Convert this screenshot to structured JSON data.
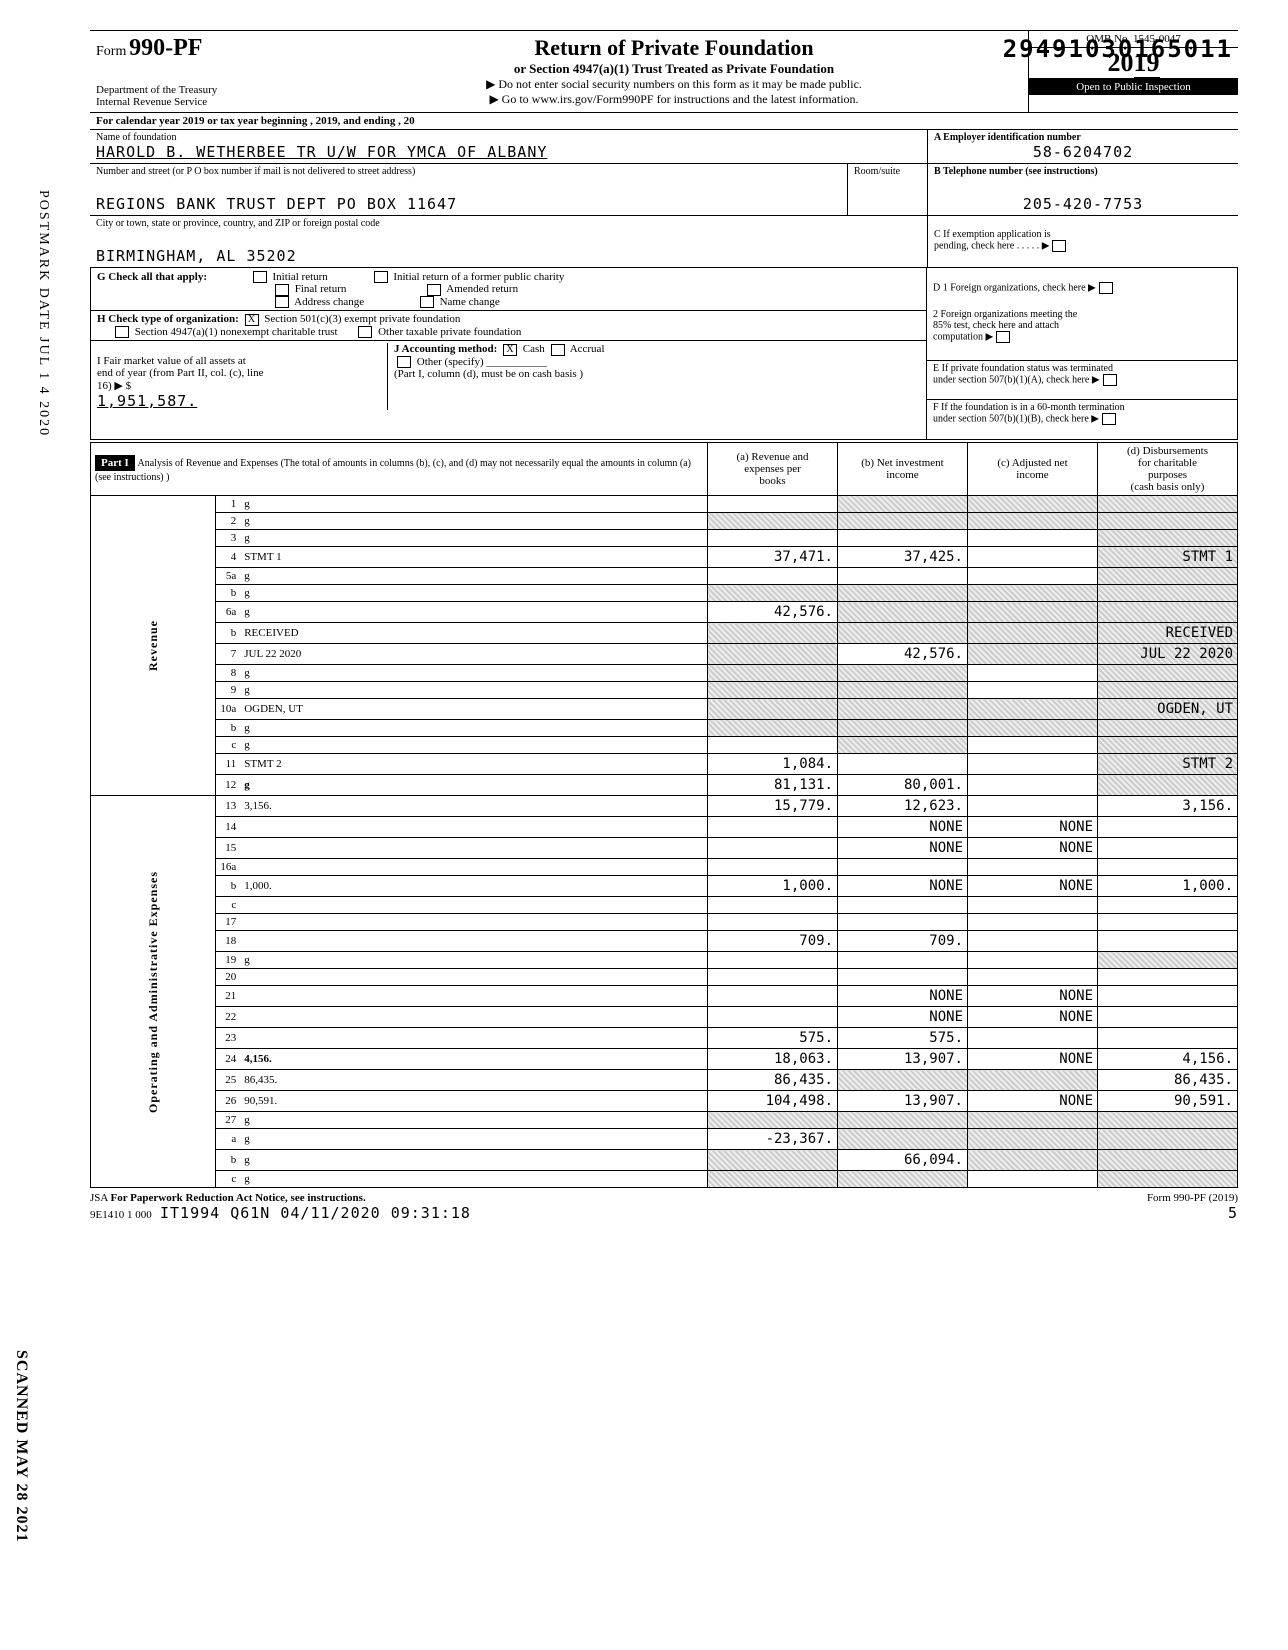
{
  "barcode": "29491030165011",
  "vertical_post": "POSTMARK DATE JUL 1 4 2020",
  "vertical_scan": "SCANNED MAY 28 2021",
  "header": {
    "form_prefix": "Form",
    "form_no": "990-PF",
    "dept1": "Department of the Treasury",
    "dept2": "Internal Revenue Service",
    "title1": "Return of Private Foundation",
    "title2": "or Section 4947(a)(1) Trust Treated as Private Foundation",
    "note1": "▶ Do not enter social security numbers on this form as it may be made public.",
    "note2": "▶ Go to www.irs.gov/Form990PF for instructions and the latest information.",
    "omb": "OMB No. 1545-0047",
    "year_big": "2019",
    "year_circle": "19",
    "inspect": "Open to Public Inspection"
  },
  "calyear": "For calendar year 2019 or tax year beginning                                          , 2019, and ending                                          , 20",
  "id": {
    "name_lbl": "Name of foundation",
    "name": "HAROLD B. WETHERBEE TR U/W FOR YMCA OF ALBANY",
    "ein_lbl": "A  Employer identification number",
    "ein": "58-6204702",
    "addr_lbl": "Number and street (or P O  box number if mail is not delivered to street address)",
    "room_lbl": "Room/suite",
    "addr": "REGIONS BANK TRUST DEPT PO BOX 11647",
    "tel_lbl": "B  Telephone number (see instructions)",
    "tel": "205-420-7753",
    "city_lbl": "City or town, state or province, country, and ZIP or foreign postal code",
    "city": "BIRMINGHAM, AL 35202",
    "c_lbl": "C  If exemption application is\n     pending, check here",
    "d1": "D  1 Foreign organizations, check here",
    "d2": "2 Foreign organizations meeting the\n     85% test, check here and attach\n     computation",
    "e": "E  If private foundation status was terminated\n     under section 507(b)(1)(A), check here",
    "f": "F  If the foundation is in a 60-month termination\n     under section 507(b)(1)(B), check here"
  },
  "g": {
    "g_lbl": "G  Check all that apply:",
    "g_opts": [
      "Initial return",
      "Initial return of a former public charity",
      "Final return",
      "Amended return",
      "Address change",
      "Name change"
    ],
    "h_lbl": "H  Check type of organization:",
    "h1": "Section 501(c)(3) exempt private foundation",
    "h2": "Section 4947(a)(1) nonexempt charitable trust",
    "h3": "Other taxable private foundation",
    "i_lbl": "I  Fair market value of all assets at\n   end of year (from Part II, col. (c), line\n   16) ▶ $",
    "i_val": "1,951,587.",
    "j_lbl": "J Accounting method:",
    "j_opts": [
      "Cash",
      "Accrual"
    ],
    "j_other": "Other (specify)",
    "j_note": "(Part I, column (d), must be on cash basis )"
  },
  "p1": {
    "part_lbl": "Part I",
    "part_title": "Analysis of Revenue and Expenses (The total of amounts in columns (b), (c), and (d) may not necessarily equal the amounts in column (a) (see instructions) )",
    "cols": [
      "(a) Revenue and\nexpenses per\nbooks",
      "(b) Net investment\nincome",
      "(c) Adjusted net\nincome",
      "(d) Disbursements\nfor charitable\npurposes\n(cash basis only)"
    ],
    "side_rev": "Revenue",
    "side_exp": "Operating and Administrative Expenses",
    "rows": [
      {
        "n": "1",
        "d": "g",
        "a": "",
        "b": "g",
        "c": "g"
      },
      {
        "n": "2",
        "d": "g",
        "a": "g",
        "b": "g",
        "c": "g"
      },
      {
        "n": "3",
        "d": "g",
        "a": "",
        "b": "",
        "c": ""
      },
      {
        "n": "4",
        "d": "STMT 1",
        "a": "37,471.",
        "b": "37,425.",
        "c": "",
        "dg": true
      },
      {
        "n": "5a",
        "d": "g",
        "a": "",
        "b": "",
        "c": ""
      },
      {
        "n": "b",
        "d": "g",
        "a": "g",
        "b": "g",
        "c": "g"
      },
      {
        "n": "6a",
        "d": "g",
        "a": "42,576.",
        "b": "g",
        "c": "g"
      },
      {
        "n": "b",
        "d": "RECEIVED",
        "a": "g",
        "b": "g",
        "c": "g",
        "dg": true
      },
      {
        "n": "7",
        "d": "JUL 22 2020",
        "a": "g",
        "b": "42,576.",
        "c": "g",
        "dg": true
      },
      {
        "n": "8",
        "d": "g",
        "a": "g",
        "b": "g",
        "c": ""
      },
      {
        "n": "9",
        "d": "g",
        "a": "g",
        "b": "g",
        "c": ""
      },
      {
        "n": "10a",
        "d": "OGDEN, UT",
        "a": "g",
        "b": "g",
        "c": "g",
        "dg": true
      },
      {
        "n": "b",
        "d": "g",
        "a": "g",
        "b": "g",
        "c": "g"
      },
      {
        "n": "c",
        "d": "g",
        "a": "",
        "b": "g",
        "c": ""
      },
      {
        "n": "11",
        "d": "STMT 2",
        "a": "1,084.",
        "b": "",
        "c": "",
        "dg": true
      },
      {
        "n": "12",
        "d": "g",
        "a": "81,131.",
        "b": "80,001.",
        "c": "",
        "bold": true
      },
      {
        "n": "13",
        "d": "3,156.",
        "a": "15,779.",
        "b": "12,623.",
        "c": ""
      },
      {
        "n": "14",
        "d": "",
        "a": "",
        "b": "NONE",
        "c": "NONE"
      },
      {
        "n": "15",
        "d": "",
        "a": "",
        "b": "NONE",
        "c": "NONE"
      },
      {
        "n": "16a",
        "d": "",
        "a": "",
        "b": "",
        "c": ""
      },
      {
        "n": "b",
        "d": "1,000.",
        "a": "1,000.",
        "b": "NONE",
        "c": "NONE"
      },
      {
        "n": "c",
        "d": "",
        "a": "",
        "b": "",
        "c": ""
      },
      {
        "n": "17",
        "d": "",
        "a": "",
        "b": "",
        "c": ""
      },
      {
        "n": "18",
        "d": "",
        "a": "709.",
        "b": "709.",
        "c": ""
      },
      {
        "n": "19",
        "d": "g",
        "a": "",
        "b": "",
        "c": ""
      },
      {
        "n": "20",
        "d": "",
        "a": "",
        "b": "",
        "c": ""
      },
      {
        "n": "21",
        "d": "",
        "a": "",
        "b": "NONE",
        "c": "NONE"
      },
      {
        "n": "22",
        "d": "",
        "a": "",
        "b": "NONE",
        "c": "NONE"
      },
      {
        "n": "23",
        "d": "",
        "a": "575.",
        "b": "575.",
        "c": ""
      },
      {
        "n": "24",
        "d": "4,156.",
        "a": "18,063.",
        "b": "13,907.",
        "c": "NONE",
        "bold": true
      },
      {
        "n": "25",
        "d": "86,435.",
        "a": "86,435.",
        "b": "g",
        "c": "g"
      },
      {
        "n": "26",
        "d": "90,591.",
        "a": "104,498.",
        "b": "13,907.",
        "c": "NONE"
      },
      {
        "n": "27",
        "d": "g",
        "a": "g",
        "b": "g",
        "c": "g"
      },
      {
        "n": "a",
        "d": "g",
        "a": "-23,367.",
        "b": "g",
        "c": "g"
      },
      {
        "n": "b",
        "d": "g",
        "a": "g",
        "b": "66,094.",
        "c": "g"
      },
      {
        "n": "c",
        "d": "g",
        "a": "g",
        "b": "g",
        "c": ""
      }
    ]
  },
  "foot": {
    "jsa": "JSA",
    "pra": "For Paperwork Reduction Act Notice, see instructions.",
    "code": "9E1410 1 000",
    "stamp": "IT1994 Q61N 04/11/2020 09:31:18",
    "form": "Form 990-PF (2019)",
    "page": "5"
  }
}
